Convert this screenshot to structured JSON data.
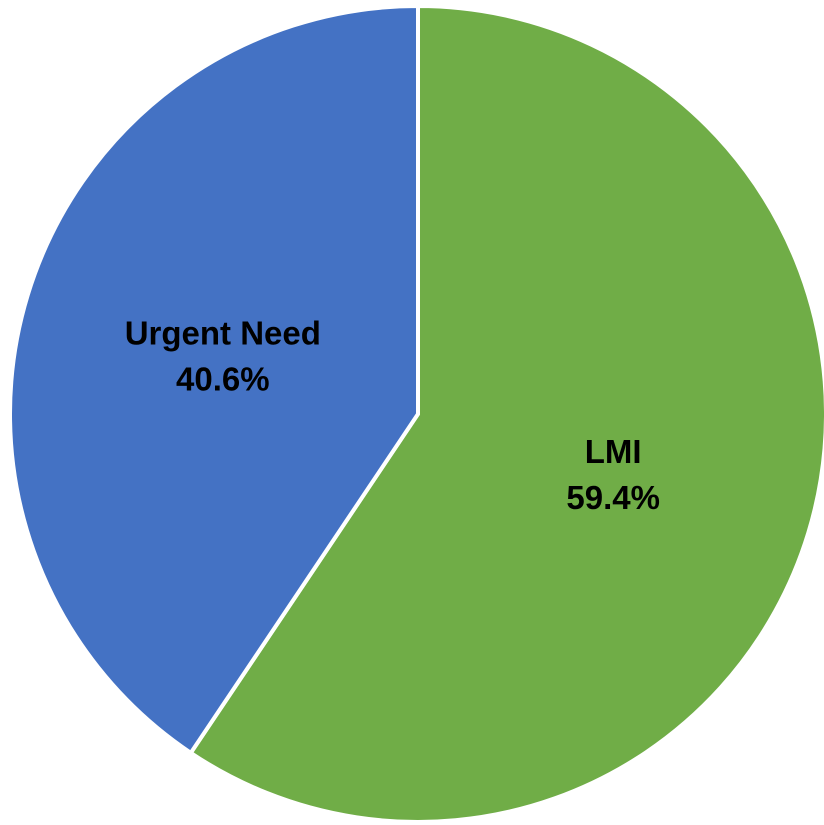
{
  "chart_data": {
    "type": "pie",
    "title": "",
    "start_angle_deg": 0,
    "direction": "clockwise",
    "slices": [
      {
        "label": "LMI",
        "value": 59.4,
        "value_label": "59.4%",
        "color": "#70AD47"
      },
      {
        "label": "Urgent Need",
        "value": 40.6,
        "value_label": "40.6%",
        "color": "#4472C4"
      }
    ],
    "slice_border_color": "#FFFFFF",
    "legend": "none"
  }
}
